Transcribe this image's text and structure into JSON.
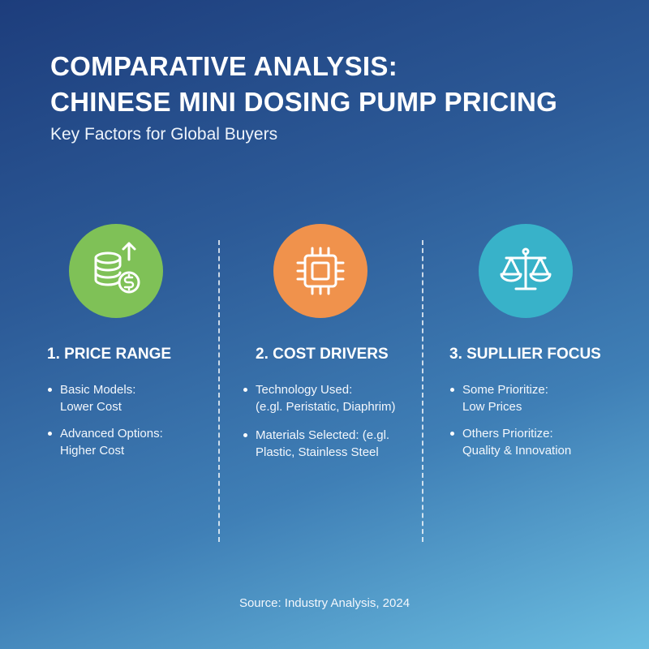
{
  "header": {
    "title_lines": [
      "COMPARATIVE ANALYSIS:",
      "CHINESE MINI DOSING PUMP PRICING"
    ],
    "subtitle": "Key Factors for Global Buyers"
  },
  "columns": [
    {
      "title": "1. PRICE RANGE",
      "icon": "coins-dollar-icon",
      "icon_color": "#7fc157",
      "bullets": [
        {
          "lines": [
            "Basic Models:",
            "Lower Cost"
          ]
        },
        {
          "lines": [
            "Advanced Options:",
            "Higher Cost"
          ]
        }
      ]
    },
    {
      "title": "2. COST DRIVERS",
      "icon": "microchip-icon",
      "icon_color": "#f0924c",
      "bullets": [
        {
          "lines": [
            "Technology Used:",
            "(e.gl. Peristatic, Diaphrim)"
          ]
        },
        {
          "lines": [
            "Materials Selected: (e.gl.",
            "Plastic, Stainless Steel"
          ]
        }
      ]
    },
    {
      "title": "3. SUPLLIER FOCUS",
      "icon": "balance-scale-icon",
      "icon_color": "#38b2c9",
      "bullets": [
        {
          "lines": [
            "Some Prioritize:",
            "Low Prices"
          ]
        },
        {
          "lines": [
            "Others Prioritize:",
            "Quality & Innovation"
          ]
        }
      ]
    }
  ],
  "footer": {
    "source": "Source: Industry Analysis, 2024"
  }
}
